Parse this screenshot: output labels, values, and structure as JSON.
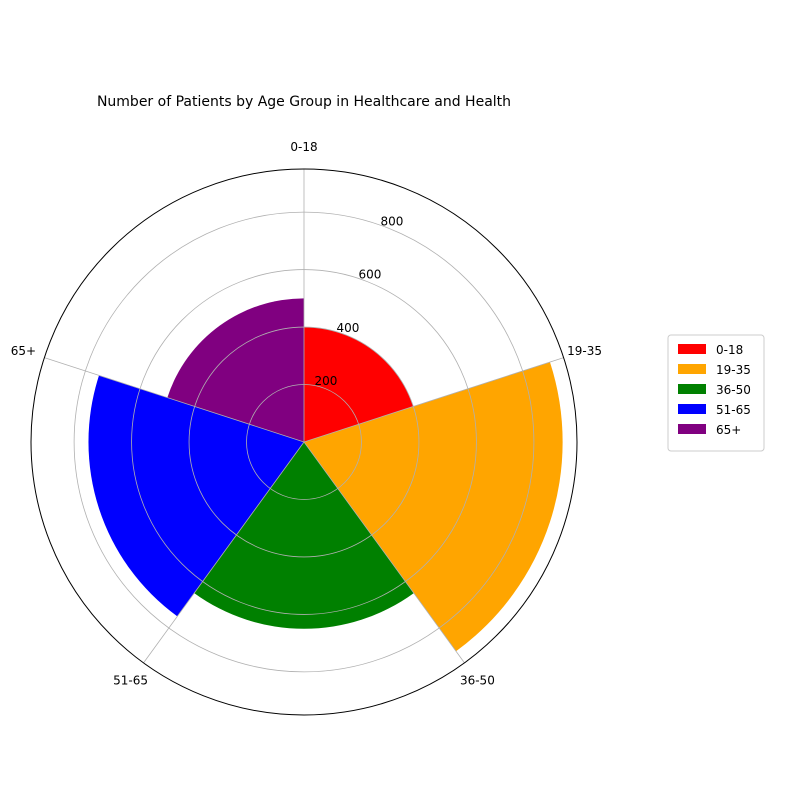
{
  "chart_data": {
    "type": "bar",
    "subtype": "polar",
    "title": "Number of Patients by Age Group in Healthcare and Health",
    "categories": [
      "0-18",
      "19-35",
      "36-50",
      "51-65",
      "65+"
    ],
    "values": [
      400,
      900,
      650,
      750,
      500
    ],
    "colors": [
      "#ff0000",
      "#ffa500",
      "#008000",
      "#0000ff",
      "#800080"
    ],
    "radial_ticks": [
      200,
      400,
      600,
      800
    ],
    "rlim": [
      0,
      950
    ],
    "grid": true,
    "legend": {
      "placement": "right",
      "entries": [
        "0-18",
        "19-35",
        "36-50",
        "51-65",
        "65+"
      ]
    }
  }
}
